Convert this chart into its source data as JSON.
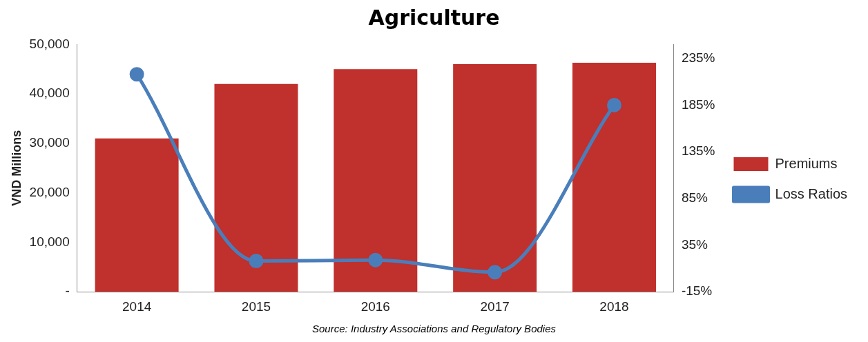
{
  "chart_data": {
    "type": "bar",
    "title": "Agriculture",
    "ylabel": "VND Millions",
    "categories": [
      "2014",
      "2015",
      "2016",
      "2017",
      "2018"
    ],
    "series": [
      {
        "name": "Premiums",
        "color": "#c0302c",
        "values": [
          31000,
          42000,
          45000,
          46000,
          46300
        ]
      },
      {
        "name": "Loss Ratios",
        "type": "line",
        "axis": "y2",
        "color": "#4a7ebb",
        "values": [
          218,
          18,
          19,
          6,
          185
        ]
      }
    ],
    "ylim": [
      0,
      50000
    ],
    "yticks": [
      {
        "value": 0,
        "label": "-"
      },
      {
        "value": 10000,
        "label": "10,000"
      },
      {
        "value": 20000,
        "label": "20,000"
      },
      {
        "value": 30000,
        "label": "30,000"
      },
      {
        "value": 40000,
        "label": "40,000"
      },
      {
        "value": 50000,
        "label": "50,000"
      }
    ],
    "y2lim": [
      -15,
      250
    ],
    "y2ticks": [
      {
        "value": -15,
        "label": "-15%"
      },
      {
        "value": 35,
        "label": "35%"
      },
      {
        "value": 85,
        "label": "85%"
      },
      {
        "value": 135,
        "label": "135%"
      },
      {
        "value": 185,
        "label": "185%"
      },
      {
        "value": 235,
        "label": "235%"
      }
    ],
    "grid": false,
    "legend": "right",
    "marker": "circle",
    "line_style": "solid",
    "annotations": [
      "Source: Industry Associations and Regulatory Bodies"
    ]
  }
}
